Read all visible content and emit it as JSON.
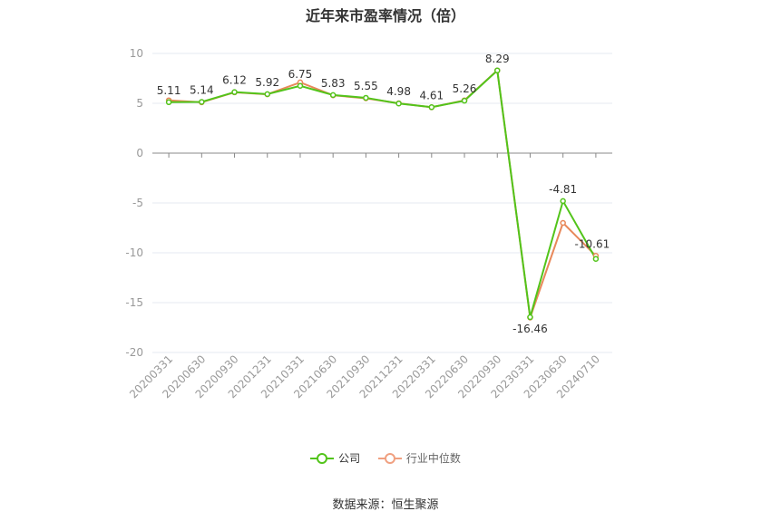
{
  "chart_data": {
    "type": "line",
    "title": "近年来市盈率情况（倍）",
    "categories": [
      "20200331",
      "20200630",
      "20200930",
      "20201231",
      "20210331",
      "20210630",
      "20210930",
      "20211231",
      "20220331",
      "20220630",
      "20220930",
      "20230331",
      "20230630",
      "20240710"
    ],
    "series": [
      {
        "name": "公司",
        "color": "#52c41a",
        "values": [
          5.11,
          5.14,
          6.12,
          5.92,
          6.75,
          5.83,
          5.55,
          4.98,
          4.61,
          5.26,
          8.29,
          -16.46,
          -4.81,
          -10.61
        ],
        "labels": [
          "5.11",
          "5.14",
          "6.12",
          "5.92",
          "6.75",
          "5.83",
          "5.55",
          "4.98",
          "4.61",
          "5.26",
          "8.29",
          "-16.46",
          "-4.81",
          "-10.61"
        ]
      },
      {
        "name": "行业中位数",
        "color": "#e8885a",
        "values": [
          5.3,
          5.1,
          6.1,
          5.9,
          7.1,
          5.8,
          5.5,
          5.0,
          4.6,
          5.3,
          8.3,
          -16.5,
          -7.0,
          -10.3
        ]
      }
    ],
    "yticks": [
      10,
      5,
      0,
      -5,
      -10,
      -15,
      -20
    ],
    "ylim": [
      -20,
      10
    ],
    "grid": true,
    "legend_position": "bottom"
  },
  "source": "数据来源：恒生聚源"
}
